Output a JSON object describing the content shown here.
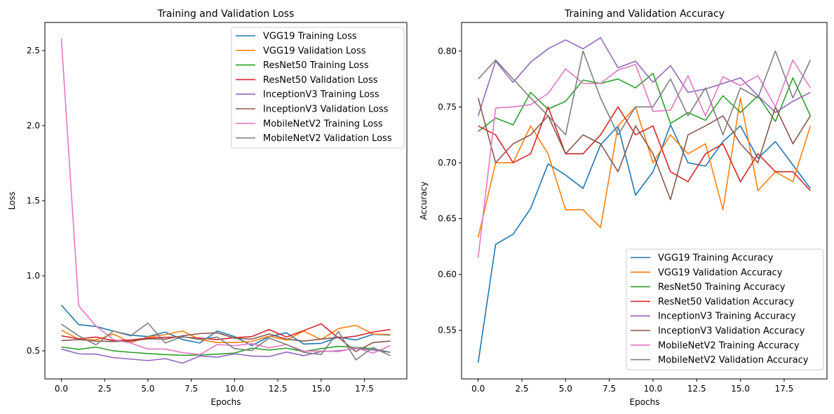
{
  "colors": {
    "VGG19": "#1f77b4",
    "VGG19V": "#ff7f0e",
    "ResNet50": "#2ca02c",
    "ResNet50V": "#d62728",
    "InceptionV3": "#9467bd",
    "InceptionV3V": "#8c564b",
    "MobileNetV2": "#e377c2",
    "MobileNetV2V": "#7f7f7f"
  },
  "chart_data": [
    {
      "type": "line",
      "title": "Training and Validation Loss",
      "xlabel": "Epochs",
      "ylabel": "Loss",
      "xlim": [
        -0.95,
        19.95
      ],
      "ylim": [
        0.313,
        2.687
      ],
      "xticks": [
        0.0,
        2.5,
        5.0,
        7.5,
        10.0,
        12.5,
        15.0,
        17.5
      ],
      "xtick_labels": [
        "0.0",
        "2.5",
        "5.0",
        "7.5",
        "10.0",
        "12.5",
        "15.0",
        "17.5"
      ],
      "yticks": [
        0.5,
        1.0,
        1.5,
        2.0,
        2.5
      ],
      "ytick_labels": [
        "0.5",
        "1.0",
        "1.5",
        "2.0",
        "2.5"
      ],
      "grid": false,
      "legend_position": "top-right",
      "x": [
        0,
        1,
        2,
        3,
        4,
        5,
        6,
        7,
        8,
        9,
        10,
        11,
        12,
        13,
        14,
        15,
        16,
        17,
        18,
        19
      ],
      "series": [
        {
          "name": "VGG19 Training Loss",
          "color_key": "VGG19",
          "values": [
            0.805,
            0.675,
            0.662,
            0.632,
            0.605,
            0.595,
            0.625,
            0.575,
            0.552,
            0.632,
            0.595,
            0.535,
            0.595,
            0.62,
            0.545,
            0.55,
            0.592,
            0.572,
            0.61,
            0.605
          ]
        },
        {
          "name": "VGG19 Validation Loss",
          "color_key": "VGG19V",
          "values": [
            0.638,
            0.578,
            0.572,
            0.612,
            0.555,
            0.592,
            0.608,
            0.632,
            0.575,
            0.555,
            0.555,
            0.562,
            0.598,
            0.572,
            0.632,
            0.575,
            0.648,
            0.67,
            0.612,
            0.608
          ]
        },
        {
          "name": "ResNet50 Training Loss",
          "color_key": "ResNet50",
          "values": [
            0.525,
            0.51,
            0.525,
            0.5,
            0.49,
            0.482,
            0.475,
            0.47,
            0.472,
            0.478,
            0.485,
            0.518,
            0.505,
            0.518,
            0.495,
            0.515,
            0.53,
            0.522,
            0.515,
            0.49
          ]
        },
        {
          "name": "ResNet50 Validation Loss",
          "color_key": "ResNet50V",
          "values": [
            0.6,
            0.58,
            0.592,
            0.568,
            0.572,
            0.585,
            0.59,
            0.592,
            0.585,
            0.575,
            0.588,
            0.595,
            0.642,
            0.592,
            0.635,
            0.68,
            0.585,
            0.598,
            0.625,
            0.642
          ]
        },
        {
          "name": "InceptionV3 Training Loss",
          "color_key": "InceptionV3",
          "values": [
            0.512,
            0.48,
            0.478,
            0.455,
            0.445,
            0.435,
            0.448,
            0.418,
            0.465,
            0.458,
            0.48,
            0.465,
            0.462,
            0.492,
            0.468,
            0.495,
            0.5,
            0.515,
            0.505,
            0.49
          ]
        },
        {
          "name": "InceptionV3 Validation Loss",
          "color_key": "InceptionV3V",
          "values": [
            0.568,
            0.575,
            0.565,
            0.562,
            0.565,
            0.58,
            0.578,
            0.6,
            0.615,
            0.62,
            0.585,
            0.578,
            0.612,
            0.578,
            0.565,
            0.578,
            0.59,
            0.495,
            0.555,
            0.565
          ]
        },
        {
          "name": "MobileNetV2 Training Loss",
          "color_key": "MobileNetV2",
          "values": [
            2.58,
            0.8,
            0.665,
            0.575,
            0.552,
            0.512,
            0.512,
            0.488,
            0.475,
            0.542,
            0.535,
            0.548,
            0.52,
            0.542,
            0.498,
            0.498,
            0.495,
            0.52,
            0.485,
            0.535
          ]
        },
        {
          "name": "MobileNetV2 Validation Loss",
          "color_key": "MobileNetV2V",
          "values": [
            0.678,
            0.6,
            0.54,
            0.632,
            0.6,
            0.685,
            0.552,
            0.595,
            0.575,
            0.592,
            0.515,
            0.502,
            0.585,
            0.542,
            0.49,
            0.475,
            0.628,
            0.44,
            0.522,
            0.468
          ]
        }
      ]
    },
    {
      "type": "line",
      "title": "Training and Validation Accuracy",
      "xlabel": "Epochs",
      "ylabel": "Accuracy",
      "xlim": [
        -0.95,
        19.95
      ],
      "ylim": [
        0.5065,
        0.8256
      ],
      "xticks": [
        0.0,
        2.5,
        5.0,
        7.5,
        10.0,
        12.5,
        15.0,
        17.5
      ],
      "xtick_labels": [
        "0.0",
        "2.5",
        "5.0",
        "7.5",
        "10.0",
        "12.5",
        "15.0",
        "17.5"
      ],
      "yticks": [
        0.55,
        0.6,
        0.65,
        0.7,
        0.75,
        0.8
      ],
      "ytick_labels": [
        "0.55",
        "0.60",
        "0.65",
        "0.70",
        "0.75",
        "0.80"
      ],
      "grid": false,
      "legend_position": "bottom-right",
      "x": [
        0,
        1,
        2,
        3,
        4,
        5,
        6,
        7,
        8,
        9,
        10,
        11,
        12,
        13,
        14,
        15,
        16,
        17,
        18,
        19
      ],
      "series": [
        {
          "name": "VGG19 Training Accuracy",
          "color_key": "VGG19",
          "values": [
            0.521,
            0.627,
            0.636,
            0.659,
            0.699,
            0.689,
            0.677,
            0.716,
            0.733,
            0.671,
            0.692,
            0.734,
            0.7,
            0.697,
            0.719,
            0.733,
            0.704,
            0.719,
            0.698,
            0.677
          ]
        },
        {
          "name": "VGG19 Validation Accuracy",
          "color_key": "VGG19V",
          "values": [
            0.633,
            0.7,
            0.7,
            0.733,
            0.708,
            0.658,
            0.658,
            0.642,
            0.733,
            0.75,
            0.7,
            0.725,
            0.708,
            0.717,
            0.658,
            0.758,
            0.675,
            0.692,
            0.683,
            0.733
          ]
        },
        {
          "name": "ResNet50 Training Accuracy",
          "color_key": "ResNet50",
          "values": [
            0.728,
            0.74,
            0.734,
            0.763,
            0.748,
            0.755,
            0.774,
            0.771,
            0.775,
            0.767,
            0.78,
            0.735,
            0.745,
            0.738,
            0.76,
            0.745,
            0.76,
            0.737,
            0.776,
            0.742
          ]
        },
        {
          "name": "ResNet50 Validation Accuracy",
          "color_key": "ResNet50V",
          "values": [
            0.733,
            0.725,
            0.7,
            0.708,
            0.75,
            0.708,
            0.708,
            0.725,
            0.75,
            0.725,
            0.733,
            0.692,
            0.683,
            0.708,
            0.717,
            0.683,
            0.708,
            0.692,
            0.692,
            0.675
          ]
        },
        {
          "name": "InceptionV3 Training Accuracy",
          "color_key": "InceptionV3",
          "values": [
            0.742,
            0.791,
            0.772,
            0.79,
            0.802,
            0.81,
            0.802,
            0.812,
            0.785,
            0.791,
            0.772,
            0.787,
            0.763,
            0.766,
            0.771,
            0.776,
            0.76,
            0.745,
            0.755,
            0.763
          ]
        },
        {
          "name": "InceptionV3 Validation Accuracy",
          "color_key": "InceptionV3V",
          "values": [
            0.758,
            0.7,
            0.717,
            0.725,
            0.742,
            0.708,
            0.725,
            0.717,
            0.692,
            0.733,
            0.708,
            0.667,
            0.725,
            0.733,
            0.742,
            0.717,
            0.7,
            0.75,
            0.717,
            0.742
          ]
        },
        {
          "name": "MobileNetV2 Training Accuracy",
          "color_key": "MobileNetV2",
          "values": [
            0.615,
            0.749,
            0.75,
            0.752,
            0.762,
            0.784,
            0.771,
            0.771,
            0.783,
            0.788,
            0.746,
            0.747,
            0.778,
            0.742,
            0.777,
            0.769,
            0.778,
            0.75,
            0.792,
            0.767
          ]
        },
        {
          "name": "MobileNetV2 Validation Accuracy",
          "color_key": "MobileNetV2V",
          "values": [
            0.775,
            0.792,
            0.775,
            0.758,
            0.742,
            0.725,
            0.8,
            0.758,
            0.725,
            0.75,
            0.75,
            0.775,
            0.742,
            0.767,
            0.725,
            0.767,
            0.758,
            0.8,
            0.758,
            0.792
          ]
        }
      ]
    }
  ]
}
